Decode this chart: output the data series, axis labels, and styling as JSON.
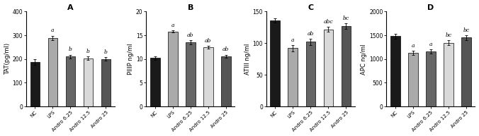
{
  "panels": [
    {
      "label": "A",
      "ylabel": "TAT(pg/ml)",
      "ylim": [
        0,
        400
      ],
      "yticks": [
        0,
        100,
        200,
        300,
        400
      ],
      "categories": [
        "NC",
        "LPS",
        "Andro 6.25",
        "Andro 12.5",
        "Andro 25"
      ],
      "values": [
        188,
        288,
        210,
        203,
        200
      ],
      "errors": [
        12,
        10,
        8,
        7,
        8
      ],
      "sig_labels": [
        "",
        "a",
        "b",
        "b",
        "b"
      ],
      "bar_colors": [
        "#1a1a1a",
        "#aaaaaa",
        "#666666",
        "#d9d9d9",
        "#555555"
      ]
    },
    {
      "label": "B",
      "ylabel": "PIIIP ng/ml",
      "ylim": [
        0,
        20
      ],
      "yticks": [
        0,
        5,
        10,
        15,
        20
      ],
      "categories": [
        "NC",
        "LPS",
        "Andro 6.25",
        "Andro 12.5",
        "Andro 25"
      ],
      "values": [
        10.2,
        15.8,
        13.5,
        12.5,
        10.6
      ],
      "errors": [
        0.35,
        0.25,
        0.4,
        0.3,
        0.3
      ],
      "sig_labels": [
        "",
        "a",
        "ab",
        "ab",
        "ab"
      ],
      "bar_colors": [
        "#1a1a1a",
        "#aaaaaa",
        "#666666",
        "#d9d9d9",
        "#555555"
      ]
    },
    {
      "label": "C",
      "ylabel": "ATIII ng/ml",
      "ylim": [
        0,
        150
      ],
      "yticks": [
        0,
        50,
        100,
        150
      ],
      "categories": [
        "NC",
        "LPS",
        "Andro 6.25",
        "Andro 12.5",
        "Andro 25"
      ],
      "values": [
        136,
        92,
        102,
        122,
        127
      ],
      "errors": [
        3,
        5,
        5,
        4,
        4
      ],
      "sig_labels": [
        "",
        "a",
        "ab",
        "abc",
        "bc"
      ],
      "bar_colors": [
        "#1a1a1a",
        "#aaaaaa",
        "#666666",
        "#d9d9d9",
        "#555555"
      ]
    },
    {
      "label": "D",
      "ylabel": "APC ng/ml",
      "ylim": [
        0,
        2000
      ],
      "yticks": [
        0,
        500,
        1000,
        1500,
        2000
      ],
      "categories": [
        "NC",
        "LPS",
        "Andro 6.25",
        "Andro 12.5",
        "Andro 25"
      ],
      "values": [
        1480,
        1130,
        1160,
        1340,
        1450
      ],
      "errors": [
        55,
        40,
        45,
        50,
        50
      ],
      "sig_labels": [
        "",
        "a",
        "a",
        "bc",
        "bc"
      ],
      "bar_colors": [
        "#1a1a1a",
        "#aaaaaa",
        "#666666",
        "#d9d9d9",
        "#555555"
      ]
    }
  ],
  "fig_width": 6.76,
  "fig_height": 1.93,
  "dpi": 100,
  "background_color": "#ffffff",
  "bar_width": 0.55,
  "xlabel_fontsize": 5.0,
  "ylabel_fontsize": 6.0,
  "tick_fontsize": 5.5,
  "sig_fontsize": 5.5,
  "panel_label_fontsize": 8,
  "error_capsize": 1.5,
  "error_linewidth": 0.6
}
